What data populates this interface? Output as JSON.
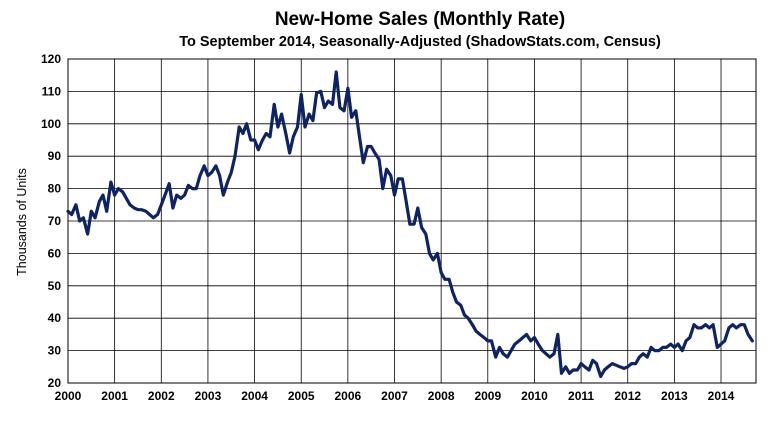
{
  "chart_data": {
    "type": "line",
    "title": "New-Home Sales (Monthly Rate)",
    "subtitle": "To September 2014, Seasonally-Adjusted (ShadowStats.com, Census)",
    "xlabel": "",
    "ylabel": "Thousands of Units",
    "xlim": [
      2000,
      2014.75
    ],
    "ylim": [
      20,
      120
    ],
    "x_ticks": [
      "2000",
      "2001",
      "2002",
      "2003",
      "2004",
      "2005",
      "2006",
      "2007",
      "2008",
      "2009",
      "2010",
      "2011",
      "2012",
      "2013",
      "2014"
    ],
    "y_ticks": [
      "20",
      "30",
      "40",
      "50",
      "60",
      "70",
      "80",
      "90",
      "100",
      "110",
      "120"
    ],
    "grid": true,
    "legend": "none",
    "line_color": "#0d2366",
    "series": [
      {
        "x": [
          2000.0,
          2000.08,
          2000.17,
          2000.25,
          2000.33,
          2000.42,
          2000.5,
          2000.58,
          2000.67,
          2000.75,
          2000.83,
          2000.92,
          2001.0,
          2001.08,
          2001.17,
          2001.25,
          2001.33,
          2001.42,
          2001.5,
          2001.58,
          2001.67,
          2001.75,
          2001.83,
          2001.92,
          2002.0,
          2002.08,
          2002.17,
          2002.25,
          2002.33,
          2002.42,
          2002.5,
          2002.58,
          2002.67,
          2002.75,
          2002.83,
          2002.92,
          2003.0,
          2003.08,
          2003.17,
          2003.25,
          2003.33,
          2003.42,
          2003.5,
          2003.58,
          2003.67,
          2003.75,
          2003.83,
          2003.92,
          2004.0,
          2004.08,
          2004.17,
          2004.25,
          2004.33,
          2004.42,
          2004.5,
          2004.58,
          2004.67,
          2004.75,
          2004.83,
          2004.92,
          2005.0,
          2005.08,
          2005.17,
          2005.25,
          2005.33,
          2005.42,
          2005.5,
          2005.58,
          2005.67,
          2005.75,
          2005.83,
          2005.92,
          2006.0,
          2006.08,
          2006.17,
          2006.25,
          2006.33,
          2006.42,
          2006.5,
          2006.58,
          2006.67,
          2006.75,
          2006.83,
          2006.92,
          2007.0,
          2007.08,
          2007.17,
          2007.25,
          2007.33,
          2007.42,
          2007.5,
          2007.58,
          2007.67,
          2007.75,
          2007.83,
          2007.92,
          2008.0,
          2008.08,
          2008.17,
          2008.25,
          2008.33,
          2008.42,
          2008.5,
          2008.58,
          2008.67,
          2008.75,
          2008.83,
          2008.92,
          2009.0,
          2009.08,
          2009.17,
          2009.25,
          2009.33,
          2009.42,
          2009.5,
          2009.58,
          2009.67,
          2009.75,
          2009.83,
          2009.92,
          2010.0,
          2010.08,
          2010.17,
          2010.25,
          2010.33,
          2010.42,
          2010.5,
          2010.58,
          2010.67,
          2010.75,
          2010.83,
          2010.92,
          2011.0,
          2011.08,
          2011.17,
          2011.25,
          2011.33,
          2011.42,
          2011.5,
          2011.58,
          2011.67,
          2011.75,
          2011.83,
          2011.92,
          2012.0,
          2012.08,
          2012.17,
          2012.25,
          2012.33,
          2012.42,
          2012.5,
          2012.58,
          2012.67,
          2012.75,
          2012.83,
          2012.92,
          2013.0,
          2013.08,
          2013.17,
          2013.25,
          2013.33,
          2013.42,
          2013.5,
          2013.58,
          2013.67,
          2013.75,
          2013.83,
          2013.92,
          2014.0,
          2014.08,
          2014.17,
          2014.25,
          2014.33,
          2014.42,
          2014.5,
          2014.58,
          2014.67
        ],
        "y": [
          73,
          72,
          75,
          70,
          71,
          66,
          73,
          71,
          76,
          78,
          73,
          82,
          78,
          80,
          79,
          77,
          75,
          74,
          73.5,
          73.5,
          73,
          72,
          71,
          72,
          75,
          78,
          81.5,
          74,
          78,
          77,
          78,
          81,
          80,
          80,
          84,
          87,
          84,
          85,
          87,
          84,
          78,
          82,
          85,
          90,
          99,
          97,
          100,
          95,
          95,
          92,
          95,
          97,
          96,
          106,
          99,
          103,
          97,
          91,
          96,
          99,
          109,
          99,
          103,
          101,
          109.5,
          110,
          105,
          107,
          106,
          116,
          105,
          104,
          111,
          102,
          104,
          96,
          88,
          93,
          93,
          91,
          89,
          80,
          86,
          84,
          78,
          83,
          83,
          76,
          69,
          69,
          74,
          68,
          66,
          60,
          58,
          60,
          54,
          52,
          52,
          48,
          45,
          44,
          41,
          40,
          38,
          36,
          35,
          34,
          33,
          33,
          28,
          31,
          29,
          28,
          30,
          32,
          33,
          34,
          35,
          33,
          34,
          32,
          30,
          29,
          28,
          29,
          35,
          23,
          25,
          23,
          24,
          24,
          26,
          25,
          24,
          27,
          26,
          22,
          24,
          25,
          26,
          25.5,
          25,
          24.5,
          25,
          26,
          26,
          28,
          29,
          28,
          31,
          30,
          30,
          31,
          31,
          32,
          31,
          32,
          30,
          33,
          34,
          38,
          37,
          37,
          38,
          37,
          38,
          31,
          32,
          33,
          37,
          38,
          37,
          38,
          38,
          35,
          33
        ]
      }
    ]
  }
}
